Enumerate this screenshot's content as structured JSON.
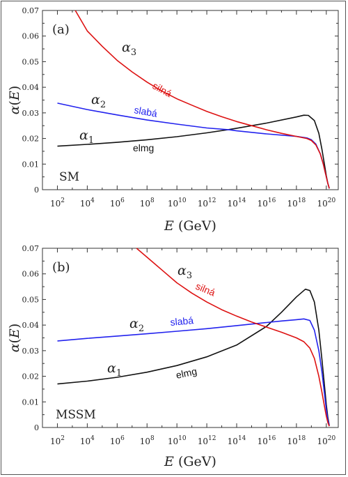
{
  "chart_data": [
    {
      "type": "line",
      "panel_label": "(a)",
      "model_label": "SM",
      "xlabel": "E (GeV)",
      "ylabel": "α(E)",
      "xscale": "log",
      "xlim_log10": [
        1,
        20.8
      ],
      "x_ticks_log10": [
        2,
        4,
        6,
        8,
        10,
        12,
        14,
        16,
        18,
        20
      ],
      "ylim": [
        0,
        0.07
      ],
      "y_ticks": [
        "0",
        "0.01",
        "0.02",
        "0.03",
        "0.04",
        "0.05",
        "0.06",
        "0.07"
      ],
      "series": [
        {
          "name": "α1",
          "annotation": "elmg",
          "color": "#111111",
          "x_log10": [
            2,
            4,
            6,
            8,
            10,
            12,
            13.5,
            14,
            16,
            18,
            18.5,
            18.8,
            19.2,
            19.5,
            19.7,
            19.9,
            20,
            20.1,
            20.2
          ],
          "y": [
            0.017,
            0.0177,
            0.0185,
            0.0195,
            0.0207,
            0.0222,
            0.0235,
            0.024,
            0.026,
            0.0284,
            0.0291,
            0.029,
            0.027,
            0.022,
            0.016,
            0.009,
            0.0055,
            0.0025,
            0.0005
          ]
        },
        {
          "name": "α2",
          "annotation": "slabá",
          "color": "#2222ee",
          "x_log10": [
            2,
            4,
            6,
            8,
            10,
            12,
            13.5,
            14,
            16,
            18,
            18.7,
            19,
            19.3,
            19.6,
            19.8,
            20,
            20.1,
            20.2
          ],
          "y": [
            0.0338,
            0.0313,
            0.0292,
            0.0272,
            0.0256,
            0.0241,
            0.0234,
            0.023,
            0.0218,
            0.0208,
            0.0202,
            0.0195,
            0.0178,
            0.014,
            0.01,
            0.005,
            0.0025,
            0.0005
          ]
        },
        {
          "name": "α3",
          "annotation": "silná",
          "color": "#dd1111",
          "x_log10": [
            3.2,
            4,
            5,
            6,
            7,
            8,
            9,
            10,
            11,
            12,
            13,
            14,
            15,
            16,
            17,
            18,
            18.7,
            19,
            19.3,
            19.6,
            19.8,
            20,
            20.1,
            20.2
          ],
          "y": [
            0.07,
            0.062,
            0.056,
            0.0505,
            0.046,
            0.042,
            0.0385,
            0.0355,
            0.033,
            0.0306,
            0.0285,
            0.0266,
            0.025,
            0.0234,
            0.022,
            0.0208,
            0.02,
            0.0192,
            0.0175,
            0.014,
            0.01,
            0.005,
            0.0025,
            0.0005
          ]
        }
      ]
    },
    {
      "type": "line",
      "panel_label": "(b)",
      "model_label": "MSSM",
      "xlabel": "E (GeV)",
      "ylabel": "α(E)",
      "xscale": "log",
      "xlim_log10": [
        1,
        20.8
      ],
      "x_ticks_log10": [
        2,
        4,
        6,
        8,
        10,
        12,
        14,
        16,
        18,
        20
      ],
      "ylim": [
        0,
        0.07
      ],
      "y_ticks": [
        "0",
        "0.01",
        "0.02",
        "0.03",
        "0.04",
        "0.05",
        "0.06",
        "0.07"
      ],
      "series": [
        {
          "name": "α1",
          "annotation": "elmg",
          "color": "#111111",
          "x_log10": [
            2,
            4,
            6,
            8,
            10,
            12,
            14,
            16,
            17,
            18,
            18.6,
            18.9,
            19.2,
            19.5,
            19.7,
            19.9,
            20,
            20.1,
            20.2
          ],
          "y": [
            0.017,
            0.0181,
            0.0196,
            0.0216,
            0.0242,
            0.0276,
            0.0322,
            0.0395,
            0.045,
            0.051,
            0.054,
            0.0535,
            0.049,
            0.038,
            0.027,
            0.015,
            0.009,
            0.004,
            0.0008
          ]
        },
        {
          "name": "α2",
          "annotation": "slabá",
          "color": "#2222ee",
          "x_log10": [
            2,
            4,
            6,
            8,
            10,
            12,
            14,
            16,
            17,
            18,
            18.5,
            18.9,
            19.2,
            19.5,
            19.7,
            19.9,
            20,
            20.1,
            20.2
          ],
          "y": [
            0.0338,
            0.0348,
            0.0357,
            0.0366,
            0.0376,
            0.0386,
            0.0398,
            0.041,
            0.0416,
            0.0421,
            0.0424,
            0.0418,
            0.038,
            0.03,
            0.022,
            0.012,
            0.007,
            0.003,
            0.0008
          ]
        },
        {
          "name": "α3",
          "annotation": "silná",
          "color": "#dd1111",
          "x_log10": [
            7.3,
            8,
            9,
            10,
            11,
            12,
            13,
            14,
            15,
            16,
            17,
            18,
            18.5,
            18.9,
            19.2,
            19.5,
            19.7,
            19.9,
            20,
            20.1,
            20.2
          ],
          "y": [
            0.07,
            0.0665,
            0.0615,
            0.0565,
            0.0525,
            0.049,
            0.046,
            0.0435,
            0.0412,
            0.0392,
            0.0372,
            0.035,
            0.0335,
            0.031,
            0.027,
            0.02,
            0.014,
            0.0075,
            0.0045,
            0.002,
            0.0005
          ]
        }
      ]
    }
  ]
}
